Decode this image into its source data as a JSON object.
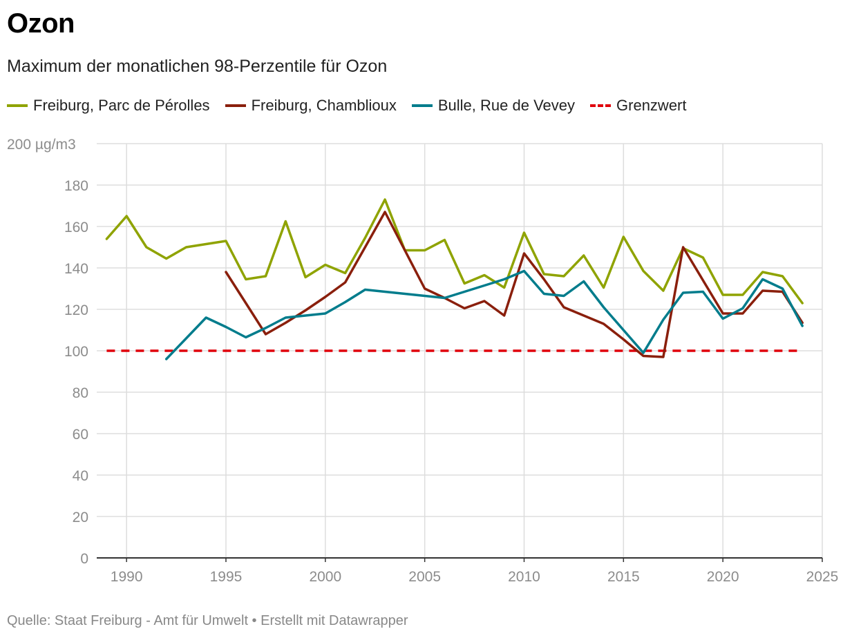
{
  "header": {
    "title": "Ozon",
    "subtitle": "Maximum der monatlichen 98-Perzentile für Ozon"
  },
  "footer": {
    "source": "Quelle: Staat Freiburg - Amt für Umwelt • Erstellt mit Datawrapper"
  },
  "chart_data": {
    "type": "line",
    "title": "Ozon",
    "subtitle": "Maximum der monatlichen 98-Perzentile für Ozon",
    "xlabel": "",
    "ylabel": "",
    "xlim": [
      1988.5,
      2025
    ],
    "ylim": [
      0,
      200
    ],
    "x_ticks": [
      1990,
      1995,
      2000,
      2005,
      2010,
      2015,
      2020,
      2025
    ],
    "y_ticks": [
      0,
      20,
      40,
      60,
      80,
      100,
      120,
      140,
      160,
      180,
      200
    ],
    "y_tick_labels": [
      "0",
      "20",
      "40",
      "60",
      "80",
      "100",
      "120",
      "140",
      "160",
      "180",
      "200 µg/m3"
    ],
    "grid": true,
    "legend_position": "top",
    "series": [
      {
        "name": "Freiburg, Parc de Pérolles",
        "color": "#8fa300",
        "dashed": false,
        "x": [
          1989,
          1990,
          1991,
          1992,
          1993,
          1994,
          1995,
          1996,
          1997,
          1998,
          1999,
          2000,
          2001,
          2002,
          2003,
          2004,
          2005,
          2006,
          2007,
          2008,
          2009,
          2010,
          2011,
          2012,
          2013,
          2014,
          2015,
          2016,
          2017,
          2018,
          2019,
          2020,
          2021,
          2022,
          2023,
          2024
        ],
        "values": [
          154,
          165,
          150,
          144.5,
          150,
          151.5,
          153,
          134.5,
          136,
          162.5,
          135.5,
          141.5,
          137.5,
          154.5,
          173,
          148.5,
          148.5,
          153.5,
          132.5,
          136.5,
          130.5,
          157,
          137,
          136,
          146,
          130.5,
          155,
          138.5,
          129,
          149.5,
          145,
          127,
          127,
          138,
          136,
          123
        ]
      },
      {
        "name": "Freiburg, Chamblioux",
        "color": "#8a1f0c",
        "dashed": false,
        "x": [
          1995,
          1996,
          1997,
          1998,
          1999,
          2000,
          2001,
          2002,
          2003,
          2004,
          2005,
          2006,
          2007,
          2008,
          2009,
          2010,
          2011,
          2012,
          2013,
          2014,
          2015,
          2016,
          2017,
          2018,
          2019,
          2020,
          2021,
          2022,
          2023,
          2024
        ],
        "values": [
          138,
          123,
          108,
          113.5,
          119.5,
          126,
          133,
          150,
          167,
          148.5,
          130,
          125.5,
          120.5,
          124,
          117,
          147,
          134.5,
          121,
          117,
          113,
          105.5,
          97.5,
          97,
          150,
          134,
          118,
          118,
          129,
          128.5,
          113.5
        ]
      },
      {
        "name": "Bulle, Rue de Vevey",
        "color": "#007c8c",
        "dashed": false,
        "x": [
          1992,
          1993,
          1994,
          1995,
          1996,
          1997,
          1998,
          1999,
          2000,
          2001,
          2002,
          2003,
          2004,
          2005,
          2006,
          2007,
          2008,
          2009,
          2010,
          2011,
          2012,
          2013,
          2014,
          2015,
          2016,
          2017,
          2018,
          2019,
          2020,
          2021,
          2022,
          2023,
          2024
        ],
        "values": [
          96,
          106,
          116,
          111.5,
          106.5,
          111,
          116,
          117,
          118,
          123.5,
          129.5,
          128.5,
          127.5,
          126.5,
          125.5,
          128.5,
          131.5,
          134.5,
          138.5,
          127.5,
          126.5,
          133.5,
          121,
          110,
          99,
          115,
          128,
          128.5,
          115.5,
          120.5,
          134.5,
          130,
          112
        ]
      },
      {
        "name": "Grenzwert",
        "color": "#e0000b",
        "dashed": true,
        "x": [
          1989,
          2024
        ],
        "values": [
          100,
          100
        ]
      }
    ]
  }
}
